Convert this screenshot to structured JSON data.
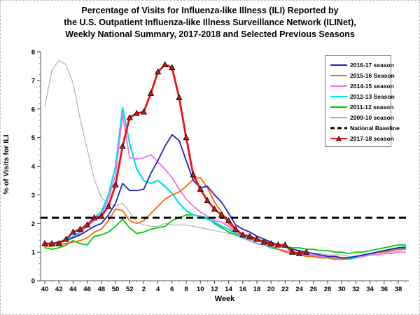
{
  "title": {
    "lines": [
      "Percentage of Visits for Influenza-like Illness (ILI) Reported by",
      "the U.S. Outpatient Influenza-like Illness Surveillance Network (ILINet),",
      "Weekly National Summary, 2017-2018 and Selected Previous Seasons"
    ]
  },
  "chart_data": {
    "type": "line",
    "xlabel": "Week",
    "ylabel": "% of Visits for ILI",
    "ylim": [
      0,
      8
    ],
    "y_ticks": [
      0,
      1,
      2,
      3,
      4,
      5,
      6,
      7,
      8
    ],
    "x_tick_labels": [
      "40",
      "42",
      "44",
      "46",
      "48",
      "50",
      "52",
      "2",
      "4",
      "6",
      "8",
      "10",
      "12",
      "14",
      "16",
      "18",
      "20",
      "22",
      "24",
      "26",
      "28",
      "30",
      "32",
      "34",
      "36",
      "38"
    ],
    "weeks": [
      40,
      41,
      42,
      43,
      44,
      45,
      46,
      47,
      48,
      49,
      50,
      51,
      52,
      1,
      2,
      3,
      4,
      5,
      6,
      7,
      8,
      9,
      10,
      11,
      12,
      13,
      14,
      15,
      16,
      17,
      18,
      19,
      20,
      21,
      22,
      23,
      24,
      25,
      26,
      27,
      28,
      29,
      30,
      31,
      32,
      33,
      34,
      35,
      36,
      37,
      38,
      39
    ],
    "grid": false,
    "legend_position": "top-right",
    "baseline": {
      "label": "National Baseline",
      "value": 2.2,
      "color": "#000000"
    },
    "series": [
      {
        "name": "2016-17 season",
        "color": "#2222BB",
        "width": 1.8,
        "values": [
          1.3,
          1.3,
          1.35,
          1.4,
          1.5,
          1.6,
          1.75,
          1.9,
          2.0,
          2.3,
          2.7,
          3.4,
          3.15,
          3.15,
          3.2,
          3.75,
          4.2,
          4.7,
          5.1,
          4.9,
          4.2,
          3.5,
          3.25,
          3.3,
          3.0,
          2.75,
          2.35,
          1.95,
          1.8,
          1.7,
          1.55,
          1.45,
          1.35,
          1.25,
          1.2,
          1.1,
          1.05,
          1.0,
          0.95,
          0.9,
          0.85,
          0.85,
          0.8,
          0.8,
          0.85,
          0.9,
          0.95,
          1.0,
          1.05,
          1.1,
          1.15,
          1.15
        ]
      },
      {
        "name": "2015-16 Season",
        "color": "#FF6600",
        "width": 1.8,
        "values": [
          1.2,
          1.2,
          1.25,
          1.3,
          1.35,
          1.4,
          1.5,
          1.7,
          1.8,
          2.1,
          2.5,
          2.45,
          2.1,
          2.0,
          2.1,
          2.35,
          2.6,
          2.85,
          3.0,
          3.1,
          3.3,
          3.55,
          3.6,
          3.25,
          2.75,
          2.4,
          2.0,
          1.75,
          1.6,
          1.5,
          1.45,
          1.35,
          1.2,
          1.1,
          1.0,
          0.95,
          0.9,
          0.85,
          0.85,
          0.8,
          0.8,
          0.75,
          0.75,
          0.8,
          0.85,
          0.9,
          0.95,
          1.0,
          1.0,
          1.05,
          1.1,
          1.1
        ]
      },
      {
        "name": "2014-15 season",
        "color": "#EE6FEE",
        "width": 1.8,
        "values": [
          1.25,
          1.3,
          1.35,
          1.4,
          1.5,
          1.65,
          1.9,
          2.1,
          2.3,
          2.85,
          3.7,
          5.8,
          4.3,
          4.25,
          4.3,
          4.4,
          4.15,
          3.9,
          3.6,
          3.2,
          2.85,
          2.6,
          2.4,
          2.25,
          2.1,
          2.05,
          1.9,
          1.7,
          1.55,
          1.4,
          1.3,
          1.25,
          1.2,
          1.1,
          1.05,
          1.0,
          0.95,
          0.9,
          0.9,
          0.85,
          0.8,
          0.8,
          0.8,
          0.8,
          0.85,
          0.85,
          0.9,
          0.9,
          0.95,
          0.95,
          1.0,
          1.0
        ]
      },
      {
        "name": "2012-13 Season",
        "color": "#00DDEE",
        "width": 2.2,
        "values": [
          1.25,
          1.3,
          1.35,
          1.45,
          1.55,
          1.7,
          1.9,
          2.2,
          2.4,
          3.0,
          4.0,
          6.05,
          4.8,
          3.9,
          3.5,
          3.4,
          3.5,
          3.3,
          3.05,
          2.7,
          2.45,
          2.3,
          2.25,
          2.15,
          2.05,
          1.9,
          1.8,
          1.65,
          1.5,
          1.4,
          1.3,
          1.25,
          1.15,
          1.1,
          1.05,
          1.0,
          0.95,
          0.9,
          0.85,
          0.8,
          0.8,
          0.75,
          0.75,
          0.75,
          0.8,
          0.85,
          0.9,
          1.0,
          1.05,
          1.1,
          1.15,
          1.2
        ]
      },
      {
        "name": "2011-12 season",
        "color": "#00CC00",
        "width": 1.8,
        "values": [
          1.15,
          1.1,
          1.15,
          1.25,
          1.4,
          1.3,
          1.25,
          1.55,
          1.6,
          1.7,
          1.9,
          2.15,
          1.85,
          1.65,
          1.7,
          1.8,
          1.85,
          1.9,
          2.1,
          2.2,
          2.3,
          2.3,
          2.25,
          2.2,
          2.0,
          1.85,
          1.7,
          1.6,
          1.5,
          1.45,
          1.4,
          1.4,
          1.3,
          1.25,
          1.2,
          1.15,
          1.15,
          1.1,
          1.1,
          1.05,
          1.05,
          1.0,
          1.0,
          0.95,
          1.0,
          1.0,
          1.05,
          1.1,
          1.15,
          1.2,
          1.25,
          1.25
        ]
      },
      {
        "name": "2009-10 season",
        "color": "#AAAAAA",
        "width": 1.1,
        "values": [
          6.1,
          7.35,
          7.7,
          7.55,
          6.9,
          5.65,
          4.6,
          3.55,
          2.9,
          2.7,
          2.6,
          2.7,
          2.4,
          2.05,
          1.95,
          1.9,
          1.9,
          2.0,
          1.95,
          1.95,
          1.95,
          1.9,
          1.85,
          1.8,
          1.75,
          1.7,
          1.65,
          1.6,
          1.5,
          1.45,
          1.4,
          1.3,
          1.25,
          1.2,
          1.15,
          1.1,
          1.0,
          1.0,
          0.95,
          0.95,
          0.9,
          0.9,
          0.9,
          0.85,
          0.85,
          0.9,
          0.9,
          0.95,
          1.0,
          1.0,
          1.05,
          1.1
        ]
      },
      {
        "name": "2017-18 season",
        "color": "#EE1111",
        "width": 2.8,
        "marker": "triangle",
        "marker_fill": "#B22222",
        "values": [
          1.3,
          1.3,
          1.3,
          1.45,
          1.7,
          1.8,
          1.95,
          2.2,
          2.25,
          2.6,
          3.35,
          4.7,
          5.7,
          5.85,
          5.9,
          6.55,
          7.3,
          7.55,
          7.45,
          6.4,
          5.0,
          3.7,
          3.2,
          2.8,
          2.5,
          2.3,
          2.1,
          1.8,
          1.6,
          1.55,
          1.45,
          1.35,
          1.3,
          1.25,
          1.25,
          1.0,
          0.95,
          1.0,
          null,
          null,
          null,
          null,
          null,
          null,
          null,
          null,
          null,
          null,
          null,
          null,
          null,
          null
        ]
      }
    ],
    "legend_items": [
      {
        "label": "2016-17 season",
        "color": "#2222BB",
        "style": "line"
      },
      {
        "label": "2015-16 Season",
        "color": "#FF6600",
        "style": "line"
      },
      {
        "label": "2014-15 season",
        "color": "#EE6FEE",
        "style": "line"
      },
      {
        "label": "2012-13 Season",
        "color": "#00DDEE",
        "style": "line"
      },
      {
        "label": "2011-12 season",
        "color": "#00CC00",
        "style": "line"
      },
      {
        "label": "2009-10 season",
        "color": "#AAAAAA",
        "style": "line"
      },
      {
        "label": "National Baseline",
        "color": "#000000",
        "style": "dash"
      },
      {
        "label": "2017-18 season",
        "color": "#EE1111",
        "style": "line-triangle"
      }
    ]
  }
}
